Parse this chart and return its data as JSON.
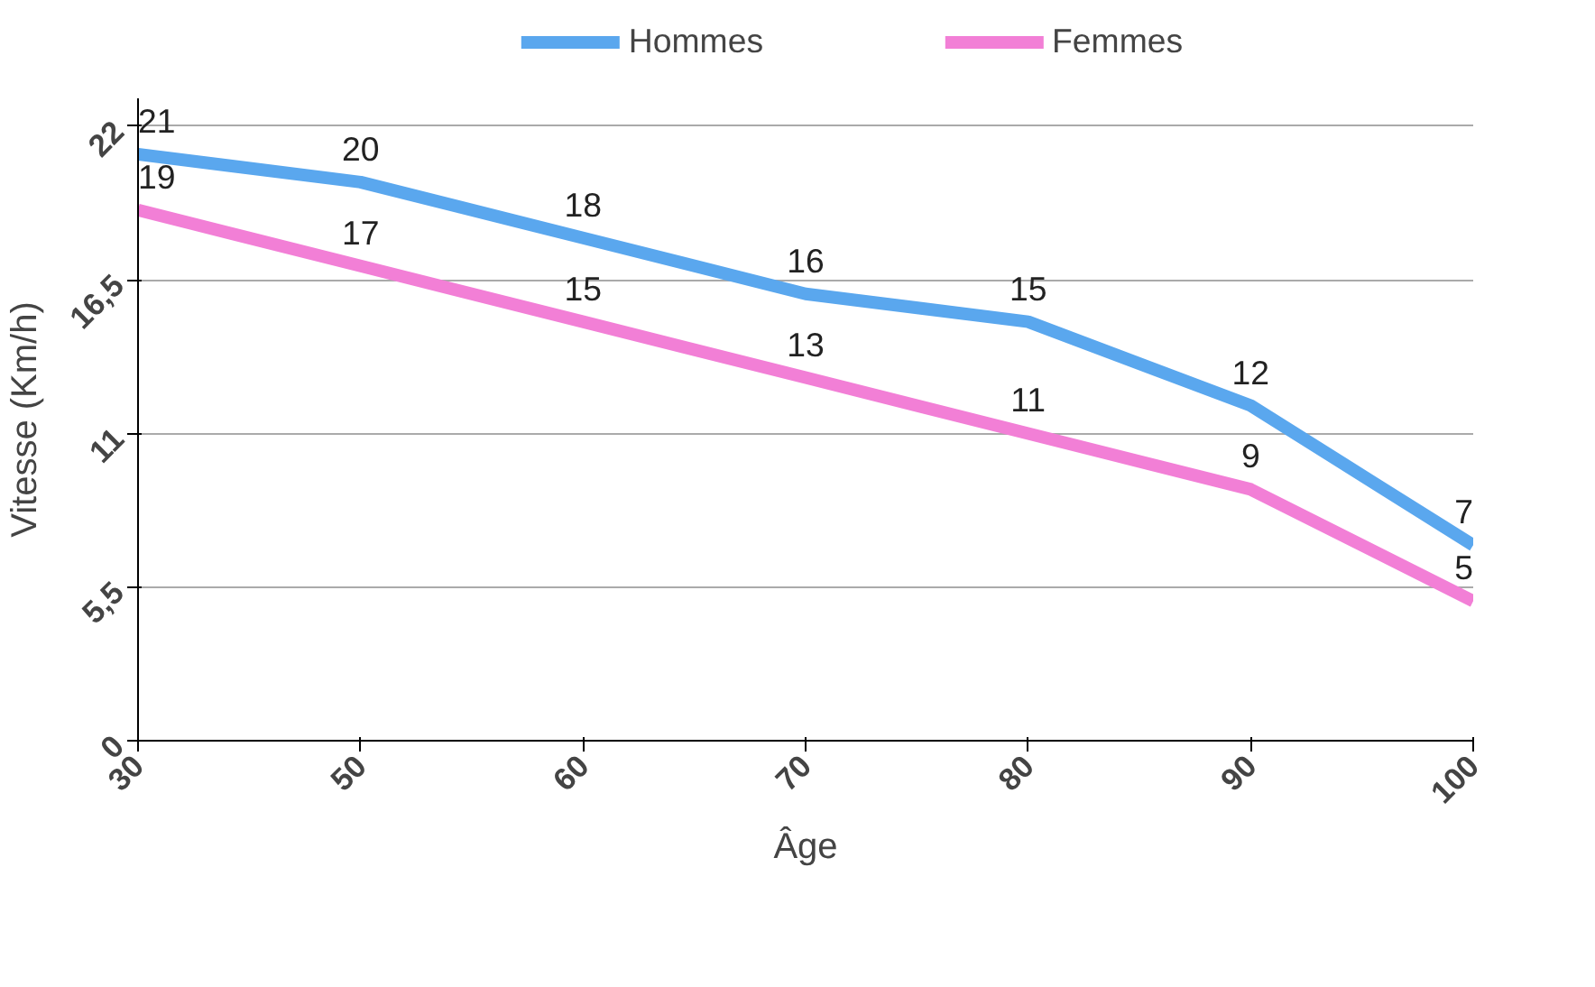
{
  "chart_data": {
    "type": "line",
    "xlabel": "Âge",
    "ylabel": "Vitesse (Km/h)",
    "categories": [
      "30",
      "50",
      "60",
      "70",
      "80",
      "90",
      "100"
    ],
    "series": [
      {
        "name": "Hommes",
        "color": "#5aa7ee",
        "values": [
          21,
          20,
          18,
          16,
          15,
          12,
          7
        ]
      },
      {
        "name": "Femmes",
        "color": "#f27fd6",
        "values": [
          19,
          17,
          15,
          13,
          11,
          9,
          5
        ]
      }
    ],
    "ylim": [
      0,
      23
    ],
    "yticks": [
      0,
      {
        "value": 5.5,
        "label": "5,5"
      },
      11,
      {
        "value": 16.5,
        "label": "16,5"
      },
      22
    ],
    "grid": "y",
    "legend": "top",
    "data_labels": true,
    "marker": "none",
    "line_style": "solid"
  }
}
